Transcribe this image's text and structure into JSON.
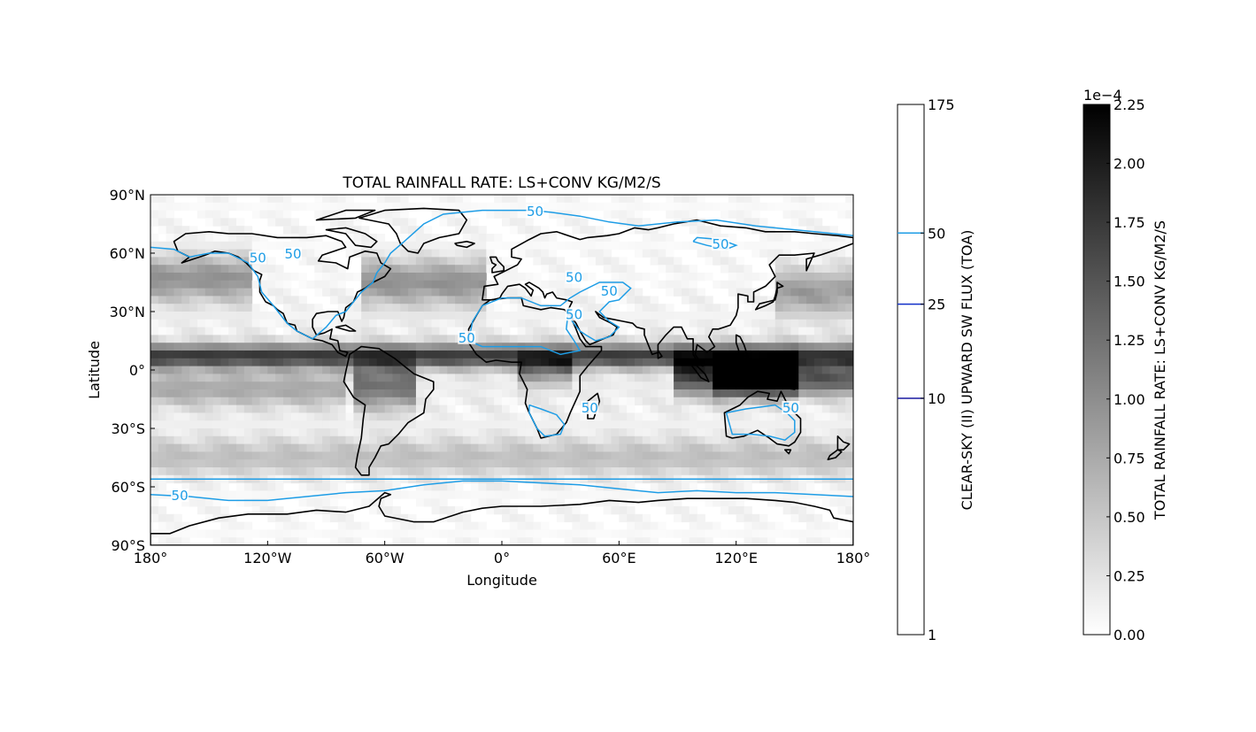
{
  "chart_data": [
    {
      "type": "heatmap",
      "title": "TOTAL RAINFALL RATE: LS+CONV KG/M2/S",
      "xlabel": "Longitude",
      "ylabel": "Latitude",
      "xlim": [
        -180,
        180
      ],
      "ylim": [
        -90,
        90
      ],
      "x_ticks": [
        {
          "value": -180,
          "label": "180°"
        },
        {
          "value": -120,
          "label": "120°W"
        },
        {
          "value": -60,
          "label": "60°W"
        },
        {
          "value": 0,
          "label": "0°"
        },
        {
          "value": 60,
          "label": "60°E"
        },
        {
          "value": 120,
          "label": "120°E"
        },
        {
          "value": 180,
          "label": "180°"
        }
      ],
      "y_ticks": [
        {
          "value": 90,
          "label": "90°N"
        },
        {
          "value": 60,
          "label": "60°N"
        },
        {
          "value": 30,
          "label": "30°N"
        },
        {
          "value": 0,
          "label": "0°"
        },
        {
          "value": -30,
          "label": "30°S"
        },
        {
          "value": -60,
          "label": "60°S"
        },
        {
          "value": -90,
          "label": "90°S"
        }
      ],
      "field_scale": "1e-4",
      "rain_bands": [
        {
          "lat": 7,
          "width": 6,
          "lon_from": -180,
          "lon_to": 180,
          "value": 1.6
        },
        {
          "lat": -10,
          "width": 9,
          "lon_from": -180,
          "lon_to": -80,
          "value": 0.6
        },
        {
          "lat": -5,
          "width": 8,
          "lon_from": 110,
          "lon_to": 180,
          "value": 1.3
        },
        {
          "lat": -3,
          "width": 10,
          "lon_from": 90,
          "lon_to": 150,
          "value": 1.5
        },
        {
          "lat": 47,
          "width": 12,
          "lon_from": -180,
          "lon_to": -130,
          "value": 0.9
        },
        {
          "lat": 45,
          "width": 12,
          "lon_from": -70,
          "lon_to": -10,
          "value": 0.9
        },
        {
          "lat": 40,
          "width": 12,
          "lon_from": 140,
          "lon_to": 180,
          "value": 0.8
        },
        {
          "lat": -45,
          "width": 10,
          "lon_from": -180,
          "lon_to": 180,
          "value": 0.5
        },
        {
          "lat": -8,
          "width": 12,
          "lon_from": -75,
          "lon_to": -45,
          "value": 1.1
        },
        {
          "lat": 0,
          "width": 8,
          "lon_from": 10,
          "lon_to": 35,
          "value": 0.8
        }
      ],
      "contours": [
        {
          "level": 50,
          "label": "50",
          "color": "#1e9de6"
        }
      ],
      "contour_labels": [
        {
          "text": "50",
          "lon": 17,
          "lat": 81
        },
        {
          "text": "50",
          "lon": -107,
          "lat": 59
        },
        {
          "text": "50",
          "lon": -125,
          "lat": 57
        },
        {
          "text": "50",
          "lon": 112,
          "lat": 64
        },
        {
          "text": "50",
          "lon": 37,
          "lat": 47
        },
        {
          "text": "50",
          "lon": 55,
          "lat": 40
        },
        {
          "text": "50",
          "lon": 37,
          "lat": 28
        },
        {
          "text": "50",
          "lon": -18,
          "lat": 16
        },
        {
          "text": "50",
          "lon": 45,
          "lat": -20
        },
        {
          "text": "50",
          "lon": 148,
          "lat": -20
        },
        {
          "text": "50",
          "lon": -165,
          "lat": -65
        }
      ]
    },
    {
      "type": "colorbar",
      "label": "CLEAR-SKY (II) UPWARD SW FLUX (TOA)",
      "scale": "log",
      "range": [
        1,
        175
      ],
      "ticks": [
        "1",
        "10",
        "25",
        "50",
        "175"
      ],
      "levels": [
        {
          "value": 10,
          "color": "#1a1aa0"
        },
        {
          "value": 25,
          "color": "#1230c8"
        },
        {
          "value": 50,
          "color": "#1e9de6"
        }
      ]
    },
    {
      "type": "colorbar",
      "label": "TOTAL RAINFALL RATE: LS+CONV KG/M2/S",
      "scale_label": "1e−4",
      "range": [
        0,
        2.25
      ],
      "ticks": [
        "0.00",
        "0.25",
        "0.50",
        "0.75",
        "1.00",
        "1.25",
        "1.50",
        "1.75",
        "2.00",
        "2.25"
      ],
      "colormap": "Greys"
    }
  ]
}
